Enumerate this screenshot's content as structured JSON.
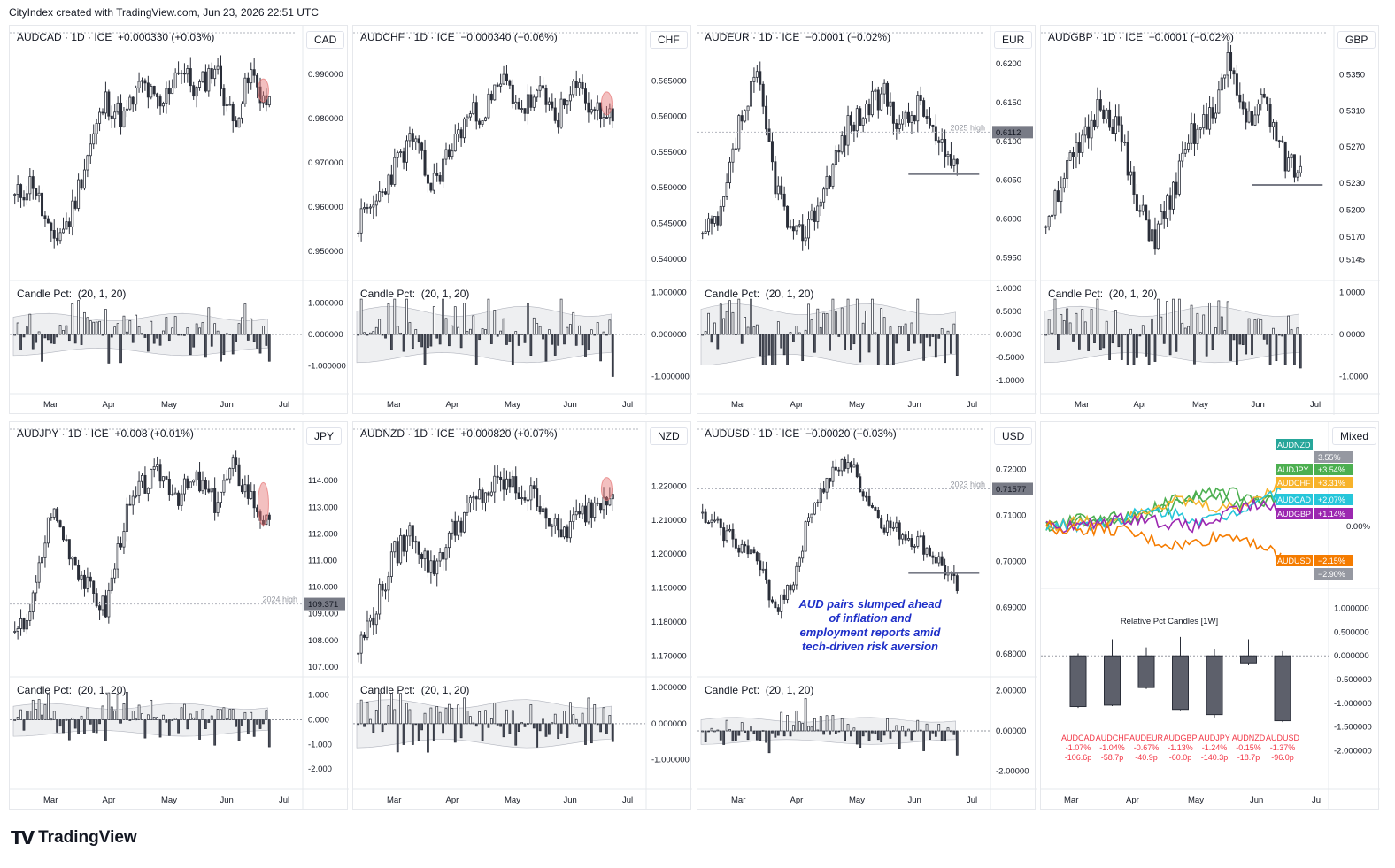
{
  "caption": "CityIndex created with TradingView.com, Jun 23, 2026 22:51 UTC",
  "logo_text": "TradingView",
  "logo_icon": "tradingview-logo-icon",
  "colors": {
    "candle": "#2a2e39",
    "sub_fill": "#cfd2d8",
    "marker": "#e57373",
    "tag_bg": "#787b86",
    "annotation": "#1e2fc8",
    "rel_neg": "#f23645"
  },
  "months": [
    "Mar",
    "Apr",
    "May",
    "Jun",
    "Jul"
  ],
  "chart_data": [
    {
      "type": "candlestick",
      "title": "AUDCAD · 1D · ICE  +0.000330 (+0.03%)",
      "currency": "CAD",
      "ylim": [
        0.945,
        0.995
      ],
      "yticks": [
        "0.990000",
        "0.980000",
        "0.970000",
        "0.960000",
        "0.950000"
      ],
      "ytick_values": [
        0.99,
        0.98,
        0.97,
        0.96,
        0.95
      ],
      "anchors": [
        0.962,
        0.966,
        0.952,
        0.957,
        0.972,
        0.984,
        0.98,
        0.988,
        0.982,
        0.992,
        0.986,
        0.992,
        0.979,
        0.99,
        0.982
      ],
      "vol": 0.003,
      "seed": 11,
      "sub": {
        "label": "Candle Pct:  (20, 1, 20)",
        "ylim": [
          -1.6,
          1.6
        ],
        "yticks": [
          "1.000000",
          "0.000000",
          "-1.000000"
        ],
        "ytick_values": [
          1,
          0,
          -1
        ],
        "last": -0.85
      },
      "marker": true,
      "marker_dir": "up",
      "hline": null,
      "annotation": null
    },
    {
      "type": "candlestick",
      "title": "AUDCHF · 1D · ICE  −0.000340 (−0.06%)",
      "currency": "CHF",
      "ylim": [
        0.538,
        0.569
      ],
      "yticks": [
        "0.565000",
        "0.560000",
        "0.555000",
        "0.550000",
        "0.545000",
        "0.540000"
      ],
      "ytick_values": [
        0.565,
        0.56,
        0.555,
        0.55,
        0.545,
        0.54
      ],
      "anchors": [
        0.545,
        0.548,
        0.553,
        0.557,
        0.55,
        0.555,
        0.56,
        0.561,
        0.565,
        0.561,
        0.563,
        0.56,
        0.564,
        0.561,
        0.56
      ],
      "vol": 0.0018,
      "seed": 23,
      "sub": {
        "label": "Candle Pct:  (20, 1, 20)",
        "ylim": [
          -1.2,
          1.2
        ],
        "yticks": [
          "1.000000",
          "0.000000",
          "-1.000000"
        ],
        "ytick_values": [
          1,
          0,
          -1
        ],
        "last": -1.0
      },
      "marker": true,
      "marker_dir": "up",
      "hline": null,
      "annotation": null
    },
    {
      "type": "candlestick",
      "title": "AUDEUR · 1D · ICE  −0.0001 (−0.02%)",
      "currency": "EUR",
      "ylim": [
        0.593,
        0.6215
      ],
      "yticks": [
        "0.6200",
        "0.6150",
        "0.6100",
        "0.6050",
        "0.6000",
        "0.5950"
      ],
      "ytick_values": [
        0.62,
        0.615,
        0.61,
        0.605,
        0.6,
        0.595
      ],
      "anchors": [
        0.5975,
        0.6,
        0.612,
        0.618,
        0.605,
        0.597,
        0.6,
        0.606,
        0.612,
        0.614,
        0.616,
        0.612,
        0.615,
        0.609,
        0.607
      ],
      "vol": 0.0018,
      "seed": 37,
      "sub": {
        "label": "Candle Pct:  (20, 1, 20)",
        "ylim": [
          -1.1,
          1.1
        ],
        "yticks": [
          "1.0000",
          "0.5000",
          "0.0000",
          "-0.5000",
          "-1.0000"
        ],
        "ytick_values": [
          1,
          0.5,
          0,
          -0.5,
          -1
        ],
        "last": -0.9
      },
      "marker": false,
      "hline": 0.6058,
      "tag": {
        "text": "0.6112",
        "value": 0.6112,
        "note": "2025 high"
      },
      "annotation": null
    },
    {
      "type": "candlestick",
      "title": "AUDGBP · 1D · ICE  −0.0001 (−0.02%)",
      "currency": "GBP",
      "ylim": [
        0.513,
        0.5375
      ],
      "yticks": [
        "0.5350",
        "0.5310",
        "0.5270",
        "0.5230",
        "0.5200",
        "0.5170",
        "0.5145"
      ],
      "ytick_values": [
        0.535,
        0.531,
        0.527,
        0.523,
        0.52,
        0.517,
        0.5145
      ],
      "anchors": [
        0.519,
        0.524,
        0.527,
        0.532,
        0.529,
        0.52,
        0.517,
        0.522,
        0.528,
        0.53,
        0.536,
        0.53,
        0.532,
        0.526,
        0.524
      ],
      "vol": 0.0016,
      "seed": 51,
      "sub": {
        "label": "Candle Pct:  (20, 1, 20)",
        "ylim": [
          -1.2,
          1.2
        ],
        "yticks": [
          "1.0000",
          "0.0000",
          "-1.0000"
        ],
        "ytick_values": [
          1,
          0,
          -1
        ],
        "last": -0.8
      },
      "marker": false,
      "hline": 0.5228,
      "annotation": null
    },
    {
      "type": "candlestick",
      "title": "AUDJPY · 1D · ICE  +0.008 (+0.01%)",
      "currency": "JPY",
      "ylim": [
        106.9,
        115.2
      ],
      "yticks": [
        "114.000",
        "113.000",
        "112.000",
        "111.000",
        "110.000",
        "109.000",
        "108.000",
        "107.000"
      ],
      "ytick_values": [
        114,
        113,
        112,
        111,
        110,
        109,
        108,
        107
      ],
      "anchors": [
        108.0,
        109.5,
        113.0,
        111.5,
        110.0,
        109.2,
        112.5,
        113.8,
        114.3,
        113.5,
        114.0,
        113.2,
        114.5,
        113.4,
        112.2
      ],
      "vol": 0.45,
      "seed": 67,
      "sub": {
        "label": "Candle Pct:  (20, 1, 20)",
        "ylim": [
          -2.5,
          1.6
        ],
        "yticks": [
          "1.000",
          "0.000",
          "-1.000",
          "-2.000"
        ],
        "ytick_values": [
          1,
          0,
          -1,
          -2
        ],
        "last": -1.1
      },
      "marker": true,
      "marker_dir": "down",
      "hline": null,
      "tag": {
        "text": "109.371",
        "value": 109.371,
        "note": "2024 high"
      },
      "annotation": null
    },
    {
      "type": "candlestick",
      "title": "AUDNZD · 1D · ICE  +0.000820 (+0.07%)",
      "currency": "NZD",
      "ylim": [
        1.166,
        1.231
      ],
      "yticks": [
        "1.220000",
        "1.210000",
        "1.200000",
        "1.190000",
        "1.180000",
        "1.170000"
      ],
      "ytick_values": [
        1.22,
        1.21,
        1.2,
        1.19,
        1.18,
        1.17
      ],
      "anchors": [
        1.172,
        1.185,
        1.2,
        1.207,
        1.195,
        1.205,
        1.213,
        1.218,
        1.221,
        1.218,
        1.216,
        1.205,
        1.21,
        1.215,
        1.22
      ],
      "vol": 0.004,
      "seed": 79,
      "sub": {
        "label": "Candle Pct:  (20, 1, 20)",
        "ylim": [
          -1.6,
          1.2
        ],
        "yticks": [
          "1.000000",
          "0.000000",
          "-1.000000"
        ],
        "ytick_values": [
          1,
          0,
          -1
        ],
        "last": -0.5
      },
      "marker": true,
      "marker_dir": "up",
      "hline": null,
      "annotation": null
    },
    {
      "type": "candlestick",
      "title": "AUDUSD · 1D · ICE  −0.00020 (−0.03%)",
      "currency": "USD",
      "ylim": [
        0.6765,
        0.7245
      ],
      "yticks": [
        "0.72000",
        "0.71000",
        "0.70000",
        "0.69000",
        "0.68000"
      ],
      "ytick_values": [
        0.72,
        0.71,
        0.7,
        0.69,
        0.68
      ],
      "anchors": [
        0.709,
        0.707,
        0.704,
        0.7,
        0.69,
        0.696,
        0.712,
        0.718,
        0.722,
        0.714,
        0.708,
        0.706,
        0.704,
        0.7,
        0.694
      ],
      "vol": 0.002,
      "seed": 93,
      "sub": {
        "label": "Candle Pct:  (20, 1, 20)",
        "ylim": [
          -2.5,
          2.5
        ],
        "yticks": [
          "2.00000",
          "0.00000",
          "-2.00000"
        ],
        "ytick_values": [
          2,
          0,
          -2
        ],
        "last": -1.2
      },
      "marker": false,
      "hline": 0.6975,
      "tag": {
        "text": "0.71577",
        "value": 0.71577,
        "note": "2023 high"
      },
      "annotation": [
        "AUD pairs slumped ahead",
        "of inflation and",
        "employment reports amid",
        "tech-driven risk aversion"
      ]
    },
    {
      "type": "line",
      "title": "",
      "currency": "Mixed",
      "yticks": [
        "0.00%"
      ],
      "ytick_values": [
        0
      ],
      "series": [
        {
          "name": "AUDNZD",
          "value": "3.55%",
          "color": "#26a69a",
          "line_color": "#4caf50"
        },
        {
          "name": "AUDJPY",
          "value": "+3.54%",
          "color": "#4caf50",
          "line_color": "#4caf50"
        },
        {
          "name": "AUDCHF",
          "value": "+3.31%",
          "color": "#f7b32b",
          "line_color": "#f7b32b"
        },
        {
          "name": "AUDCAD",
          "value": "+2.07%",
          "color": "#26c6da",
          "line_color": "#26c6da"
        },
        {
          "name": "AUDGBP",
          "value": "+1.14%",
          "color": "#9c27b0",
          "line_color": "#9c27b0"
        },
        {
          "name": "AUDUSD",
          "value": "−2.15%",
          "color": "#f57c00",
          "line_color": "#f57c00"
        }
      ],
      "extra_tags": [
        "−2.90%"
      ]
    },
    {
      "type": "bar",
      "title": "Relative Pct Candles [1W]",
      "yticks": [
        "1.000000",
        "0.500000",
        "0.000000",
        "-0.500000",
        "-1.000000",
        "-1.500000",
        "-2.000000"
      ],
      "ytick_values": [
        1,
        0.5,
        0,
        -0.5,
        -1,
        -1.5,
        -2
      ],
      "ylim": [
        -2.2,
        1.2
      ],
      "categories": [
        "AUDCAD",
        "AUDCHF",
        "AUDEUR",
        "AUDGBP",
        "AUDJPY",
        "AUDNZD",
        "AUDUSD"
      ],
      "pct": [
        "-1.07%",
        "-1.04%",
        "-0.67%",
        "-1.13%",
        "-1.24%",
        "-0.15%",
        "-1.37%"
      ],
      "pips": [
        "-106.6p",
        "-58.7p",
        "-40.9p",
        "-60.0p",
        "-140.3p",
        "-18.7p",
        "-96.0p"
      ],
      "open": [
        0,
        0,
        0,
        0,
        0,
        0,
        0
      ],
      "close": [
        -1.07,
        -1.04,
        -0.67,
        -1.13,
        -1.24,
        -0.15,
        -1.37
      ],
      "high": [
        0.05,
        0.35,
        0.18,
        0.4,
        0.15,
        0.35,
        0.1
      ],
      "low": [
        -1.1,
        -1.06,
        -0.7,
        -1.15,
        -1.3,
        -0.2,
        -1.4
      ]
    }
  ]
}
